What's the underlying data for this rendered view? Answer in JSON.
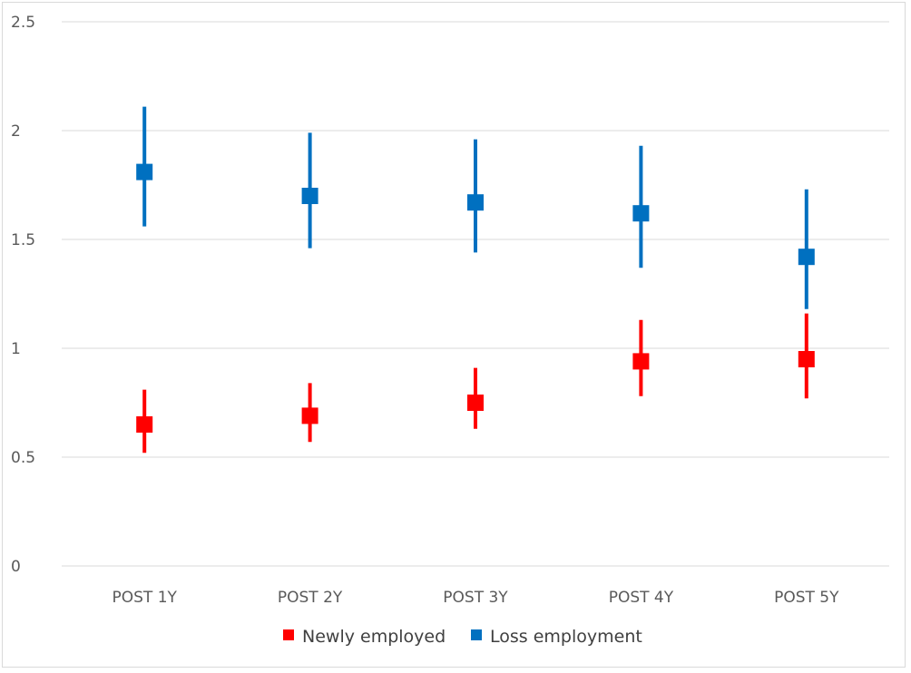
{
  "chart_data": {
    "type": "scatter",
    "categories": [
      "POST 1Y",
      "POST 2Y",
      "POST 3Y",
      "POST 4Y",
      "POST 5Y"
    ],
    "ylim": [
      0,
      2.5
    ],
    "yticks": [
      "0",
      "0.5",
      "1",
      "1.5",
      "2",
      "2.5"
    ],
    "grid": true,
    "legend_position": "bottom",
    "series": [
      {
        "name": "Newly employed",
        "color": "#ff0000",
        "values": [
          0.65,
          0.69,
          0.75,
          0.94,
          0.95
        ],
        "lower": [
          0.52,
          0.57,
          0.63,
          0.78,
          0.77
        ],
        "upper": [
          0.81,
          0.84,
          0.91,
          1.13,
          1.16
        ]
      },
      {
        "name": "Loss employment",
        "color": "#0070c0",
        "values": [
          1.81,
          1.7,
          1.67,
          1.62,
          1.42
        ],
        "lower": [
          1.56,
          1.46,
          1.44,
          1.37,
          1.18
        ],
        "upper": [
          2.11,
          1.99,
          1.96,
          1.93,
          1.73
        ]
      }
    ]
  }
}
